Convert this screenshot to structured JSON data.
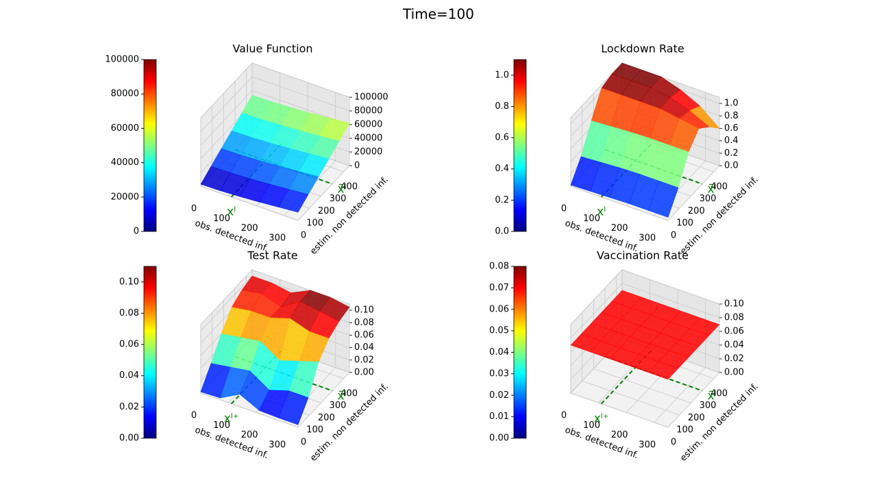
{
  "title": "Time=100",
  "chart_data": [
    {
      "type": "surface",
      "title": "Value Function",
      "xlabel": "obs. detected inf.",
      "ylabel": "estim. non detected inf.",
      "colormap": "jet",
      "x": [
        0,
        70,
        140,
        210,
        280,
        350
      ],
      "y": [
        0,
        90,
        180,
        270,
        360,
        450
      ],
      "z": [
        [
          3000,
          3500,
          5000,
          7000,
          9500,
          12000
        ],
        [
          13000,
          13500,
          15000,
          17000,
          19500,
          22000
        ],
        [
          23000,
          23500,
          25000,
          27000,
          29500,
          32000
        ],
        [
          33000,
          33500,
          35000,
          37000,
          39500,
          42000
        ],
        [
          43000,
          43500,
          45000,
          47000,
          49500,
          52000
        ],
        [
          53000,
          53500,
          55000,
          57000,
          59500,
          62000
        ]
      ],
      "xlim": [
        0,
        350
      ],
      "ylim": [
        0,
        450
      ],
      "zlim": [
        0,
        100000
      ],
      "xticks": [
        0,
        100,
        200,
        300
      ],
      "yticks": [
        0,
        100,
        200,
        300,
        400
      ],
      "zticks": [
        0,
        20000,
        40000,
        60000,
        80000,
        100000
      ],
      "clim": [
        0,
        100000
      ],
      "cticks": [
        0,
        20000,
        40000,
        60000,
        80000,
        100000
      ],
      "x_marker": {
        "label": "xˡ",
        "value": 110
      },
      "y_marker": {
        "label": "x̄ˡ",
        "value": 300
      }
    },
    {
      "type": "surface",
      "title": "Lockdown Rate",
      "xlabel": "obs. detected inf.",
      "ylabel": "estim. non detected inf.",
      "colormap": "jet",
      "x": [
        0,
        70,
        140,
        210,
        280,
        350
      ],
      "y": [
        0,
        90,
        180,
        270,
        360,
        450
      ],
      "z": [
        [
          0.02,
          0.03,
          0.04,
          0.05,
          0.05,
          0.05
        ],
        [
          0.3,
          0.32,
          0.34,
          0.35,
          0.35,
          0.35
        ],
        [
          0.7,
          0.72,
          0.74,
          0.75,
          0.75,
          0.75
        ],
        [
          1.05,
          1.05,
          1.05,
          1.05,
          1.0,
          0.95
        ],
        [
          1.1,
          1.1,
          1.1,
          1.05,
          0.95,
          0.8
        ],
        [
          1.1,
          1.1,
          1.1,
          1.0,
          0.85,
          0.6
        ]
      ],
      "xlim": [
        0,
        350
      ],
      "ylim": [
        0,
        450
      ],
      "zlim": [
        0,
        1.1
      ],
      "xticks": [
        0,
        100,
        200,
        300
      ],
      "yticks": [
        0,
        100,
        200,
        300,
        400
      ],
      "zticks": [
        {
          "value": 0,
          "label": "0.0"
        },
        0.2,
        0.4,
        0.6,
        0.8,
        {
          "value": 1,
          "label": "1.0"
        }
      ],
      "clim": [
        0,
        1.1
      ],
      "cticks": [
        {
          "value": 0,
          "label": "0.0"
        },
        0.2,
        0.4,
        0.6,
        0.8,
        {
          "value": 1,
          "label": "1.0"
        }
      ],
      "x_marker": {
        "label": "xˡ",
        "value": 110
      },
      "y_marker": {
        "label": "x̄ˡ",
        "value": 300
      }
    },
    {
      "type": "surface",
      "title": "Test Rate",
      "xlabel": "obs. detected inf.",
      "ylabel": "estim. non detected inf.",
      "colormap": "jet",
      "x": [
        0,
        70,
        140,
        210,
        280,
        350
      ],
      "y": [
        0,
        90,
        180,
        270,
        360,
        450
      ],
      "z": [
        [
          0.002,
          0.003,
          0.02,
          0.005,
          0.004,
          0.004
        ],
        [
          0.03,
          0.035,
          0.04,
          0.02,
          0.03,
          0.03
        ],
        [
          0.06,
          0.065,
          0.07,
          0.05,
          0.06,
          0.07
        ],
        [
          0.085,
          0.09,
          0.09,
          0.1,
          0.09,
          0.09
        ],
        [
          0.095,
          0.1,
          0.09,
          0.11,
          0.105,
          0.1
        ],
        [
          0.1,
          0.1,
          0.095,
          0.11,
          0.11,
          0.105
        ]
      ],
      "xlim": [
        0,
        350
      ],
      "ylim": [
        0,
        450
      ],
      "zlim": [
        0,
        0.11
      ],
      "xticks": [
        0,
        100,
        200,
        300
      ],
      "yticks": [
        0,
        100,
        200,
        300,
        400
      ],
      "zticks": [
        {
          "value": 0,
          "label": "0.00"
        },
        0.02,
        0.04,
        0.06,
        0.08,
        {
          "value": 0.1,
          "label": "0.10"
        }
      ],
      "clim": [
        0,
        0.11
      ],
      "cticks": [
        {
          "value": 0,
          "label": "0.00"
        },
        0.02,
        0.04,
        0.06,
        0.08,
        {
          "value": 0.1,
          "label": "0.10"
        }
      ],
      "x_marker": {
        "label": "xˡ⁺",
        "value": 110
      },
      "y_marker": {
        "label": "x̄ˡ",
        "value": 300
      }
    },
    {
      "type": "surface",
      "title": "Vaccination Rate",
      "xlabel": "obs. detected inf.",
      "ylabel": "estim. non detected inf.",
      "colormap": "jet",
      "x": [
        0,
        70,
        140,
        210,
        280,
        350
      ],
      "y": [
        0,
        90,
        180,
        270,
        360,
        450
      ],
      "z": [
        [
          0.07,
          0.07,
          0.07,
          0.07,
          0.07,
          0.07
        ],
        [
          0.07,
          0.07,
          0.07,
          0.07,
          0.07,
          0.07
        ],
        [
          0.07,
          0.07,
          0.07,
          0.07,
          0.07,
          0.07
        ],
        [
          0.07,
          0.07,
          0.07,
          0.07,
          0.07,
          0.07
        ],
        [
          0.07,
          0.07,
          0.07,
          0.07,
          0.07,
          0.07
        ],
        [
          0.07,
          0.07,
          0.07,
          0.07,
          0.07,
          0.07
        ]
      ],
      "xlim": [
        0,
        350
      ],
      "ylim": [
        0,
        450
      ],
      "zlim": [
        0,
        0.1
      ],
      "xticks": [
        0,
        100,
        200,
        300
      ],
      "yticks": [
        0,
        100,
        200,
        300,
        400
      ],
      "zticks": [
        {
          "value": 0,
          "label": "0.00"
        },
        0.02,
        0.04,
        0.06,
        0.08,
        {
          "value": 0.1,
          "label": "0.10"
        }
      ],
      "clim": [
        0,
        0.08
      ],
      "cticks": [
        {
          "value": 0,
          "label": "0.00"
        },
        0.01,
        0.02,
        0.03,
        0.04,
        0.05,
        0.06,
        0.07,
        0.08
      ],
      "x_marker": {
        "label": "xˡ⁺",
        "value": 110
      },
      "y_marker": {
        "label": "x̄ˡ",
        "value": 300
      }
    }
  ]
}
